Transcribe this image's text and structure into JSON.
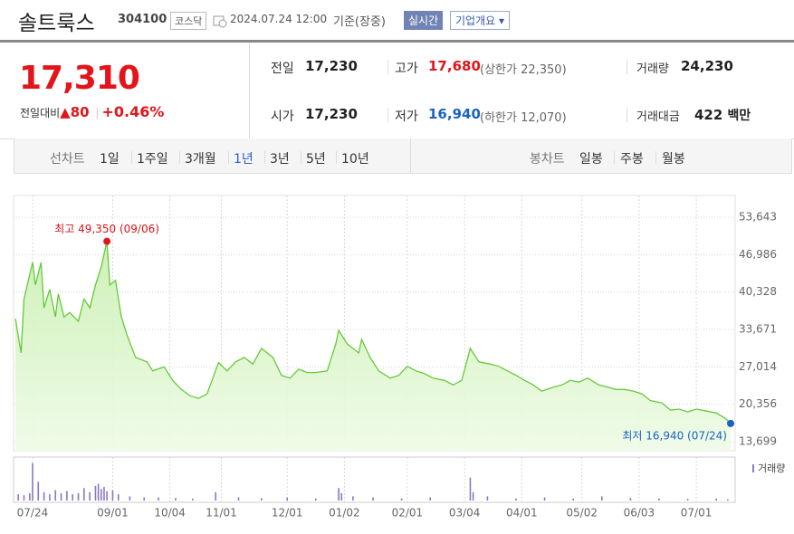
{
  "header": {
    "name": "솔트룩스",
    "code": "304100",
    "market": "코스닥",
    "datetime": "2024.07.24 12:00",
    "basis": "기준(장중)",
    "realtime": "실시간",
    "company": "기업개요"
  },
  "quote": {
    "price": "17,310",
    "change_label": "전일대비",
    "change": "80",
    "change_rate": "+0.46%",
    "stats": [
      [
        {
          "label": "전일",
          "value": "17,230"
        },
        {
          "label": "고가",
          "value": "17,680",
          "note": "(상한가 22,350)"
        },
        {
          "label": "거래량",
          "value": "24,230"
        }
      ],
      [
        {
          "label": "시가",
          "value": "17,230"
        },
        {
          "label": "저가",
          "value": "16,940",
          "note": "(하한가 12,070)"
        },
        {
          "label": "거래대금",
          "value": "422",
          "unit": "백만"
        }
      ]
    ]
  },
  "tabs": {
    "line_label": "선차트",
    "line_periods": [
      "1일",
      "1주일",
      "3개월",
      "1년",
      "3년",
      "5년",
      "10년"
    ],
    "selected": "1년",
    "candle_label": "봉차트",
    "candle_periods": [
      "일봉",
      "주봉",
      "월봉"
    ]
  },
  "chart_data": [
    {
      "type": "area",
      "color": "#66c93a",
      "annotations": {
        "high": "최고 49,350 (09/06)",
        "low": "최저 16,940 (07/24)"
      },
      "x": [
        0,
        2,
        3,
        6,
        7,
        9,
        10,
        12,
        14,
        15,
        17,
        19,
        22,
        24,
        26,
        28,
        30,
        32,
        33,
        35,
        37,
        39,
        42,
        46,
        48,
        52,
        55,
        58,
        61,
        64,
        67,
        71,
        74,
        77,
        80,
        83,
        86,
        90,
        93,
        96,
        99,
        102,
        105,
        109,
        112,
        113,
        116,
        120,
        121,
        124,
        127,
        131,
        134,
        137,
        140,
        143,
        146,
        150,
        153,
        156,
        159,
        162,
        166,
        169,
        172,
        175,
        178,
        181,
        184,
        188,
        191,
        194,
        197,
        200,
        204,
        207,
        210,
        213,
        216,
        219,
        222,
        226,
        229,
        232,
        235,
        238,
        241,
        245,
        248,
        250
      ],
      "values": [
        35600,
        29500,
        39100,
        45600,
        41600,
        45600,
        37500,
        40800,
        35900,
        40000,
        35900,
        36700,
        35100,
        39100,
        37500,
        41600,
        44800,
        49350,
        41600,
        42400,
        36000,
        32700,
        28700,
        27900,
        26300,
        27000,
        24600,
        23000,
        21900,
        21400,
        22200,
        27800,
        26300,
        27900,
        28700,
        27500,
        30300,
        28700,
        25500,
        25000,
        26600,
        26000,
        26000,
        26300,
        31100,
        33500,
        31100,
        29500,
        31900,
        28700,
        26300,
        25000,
        25500,
        27100,
        26300,
        25800,
        25000,
        24600,
        23800,
        24600,
        30300,
        27900,
        27500,
        27100,
        26300,
        25500,
        24600,
        23800,
        22700,
        23400,
        23800,
        24600,
        24300,
        25000,
        23800,
        23400,
        23000,
        23000,
        22700,
        22200,
        21000,
        20600,
        19300,
        19500,
        19000,
        19500,
        19200,
        18800,
        17900,
        16940
      ],
      "xlim": [
        0,
        250
      ],
      "xticks": [
        {
          "value": 6,
          "label": "07/24"
        },
        {
          "value": 34,
          "label": "09/01"
        },
        {
          "value": 54,
          "label": "10/04"
        },
        {
          "value": 72,
          "label": "11/01"
        },
        {
          "value": 95,
          "label": "12/01"
        },
        {
          "value": 115,
          "label": "01/02"
        },
        {
          "value": 137,
          "label": "02/01"
        },
        {
          "value": 157,
          "label": "03/04"
        },
        {
          "value": 177,
          "label": "04/01"
        },
        {
          "value": 198,
          "label": "05/02"
        },
        {
          "value": 218,
          "label": "06/03"
        },
        {
          "value": 238,
          "label": "07/01"
        }
      ],
      "ylim": [
        13699,
        53643
      ],
      "yticks": [
        {
          "value": 13699,
          "label": "13,699"
        },
        {
          "value": 20356,
          "label": "20,356"
        },
        {
          "value": 27014,
          "label": "27,014"
        },
        {
          "value": 33671,
          "label": "33,671"
        },
        {
          "value": 40328,
          "label": "40,328"
        },
        {
          "value": 46986,
          "label": "46,986"
        },
        {
          "value": 53643,
          "label": "53,643"
        }
      ],
      "grid": true
    },
    {
      "type": "bar",
      "legend": "거래량",
      "color": "#8a78c0",
      "x": [
        1,
        3,
        5,
        6,
        8,
        10,
        12,
        14,
        16,
        18,
        20,
        22,
        24,
        26,
        28,
        29,
        30,
        31,
        32,
        34,
        36,
        40,
        45,
        50,
        56,
        62,
        70,
        78,
        86,
        95,
        105,
        113,
        114,
        118,
        125,
        135,
        145,
        159,
        160,
        165,
        175,
        185,
        195,
        205,
        215,
        225,
        235,
        245,
        249
      ],
      "values": [
        300000,
        250000,
        350000,
        1800000,
        900000,
        400000,
        300000,
        500000,
        350000,
        450000,
        300000,
        350000,
        600000,
        400000,
        700000,
        800000,
        550000,
        650000,
        450000,
        500000,
        300000,
        200000,
        150000,
        150000,
        120000,
        100000,
        400000,
        150000,
        120000,
        150000,
        100000,
        600000,
        350000,
        200000,
        150000,
        100000,
        150000,
        1100000,
        400000,
        200000,
        100000,
        150000,
        100000,
        200000,
        120000,
        100000,
        80000,
        100000,
        60000
      ],
      "xlim": [
        0,
        250
      ],
      "ylim": [
        0,
        2000000
      ]
    }
  ]
}
